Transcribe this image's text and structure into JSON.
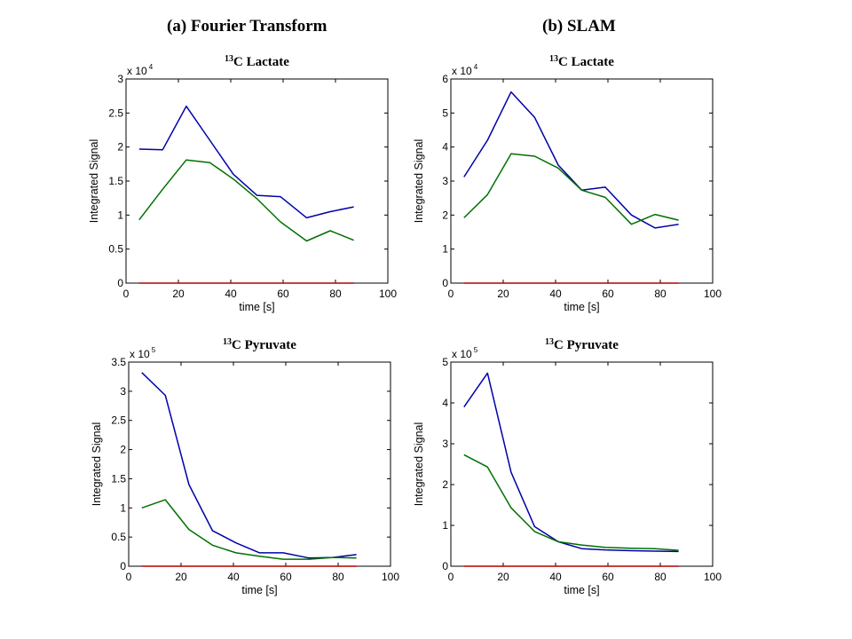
{
  "columns": {
    "left_heading": "(a) Fourier Transform",
    "right_heading": "(b) SLAM"
  },
  "chart_data": [
    {
      "type": "line",
      "title_sup": "13",
      "title": "C Lactate",
      "xlabel": "time [s]",
      "ylabel": "Integrated Signal",
      "multiplier_base": "x 10",
      "multiplier_exp": "4",
      "xlim": [
        0,
        100
      ],
      "ylim": [
        0,
        3
      ],
      "xticks": [
        0,
        20,
        40,
        60,
        80,
        100
      ],
      "yticks": [
        0,
        0.5,
        1,
        1.5,
        2,
        2.5,
        3
      ],
      "xtick_labels": [
        "0",
        "20",
        "40",
        "60",
        "80",
        "100"
      ],
      "ytick_labels": [
        "0",
        "0.5",
        "1",
        "1.5",
        "2",
        "2.5",
        "3"
      ],
      "x": [
        5,
        14,
        23,
        32,
        41,
        50,
        59,
        69,
        78,
        87
      ],
      "series": [
        {
          "name": "blue",
          "color": "#0000aa",
          "values": [
            1.97,
            1.96,
            2.6,
            2.1,
            1.6,
            1.29,
            1.27,
            0.96,
            1.05,
            1.12
          ]
        },
        {
          "name": "green",
          "color": "#007000",
          "values": [
            0.93,
            1.38,
            1.81,
            1.77,
            1.53,
            1.24,
            0.9,
            0.62,
            0.77,
            0.63
          ]
        },
        {
          "name": "red",
          "color": "#b00000",
          "values": [
            0,
            0,
            0,
            0,
            0,
            0,
            0,
            0,
            0,
            0
          ]
        }
      ]
    },
    {
      "type": "line",
      "title_sup": "13",
      "title": "C Lactate",
      "xlabel": "time [s]",
      "ylabel": "Integrated Signal",
      "multiplier_base": "x 10",
      "multiplier_exp": "4",
      "xlim": [
        0,
        100
      ],
      "ylim": [
        0,
        6
      ],
      "xticks": [
        0,
        20,
        40,
        60,
        80,
        100
      ],
      "yticks": [
        0,
        1,
        2,
        3,
        4,
        5,
        6
      ],
      "xtick_labels": [
        "0",
        "20",
        "40",
        "60",
        "80",
        "100"
      ],
      "ytick_labels": [
        "0",
        "1",
        "2",
        "3",
        "4",
        "5",
        "6"
      ],
      "x": [
        5,
        14,
        23,
        32,
        41,
        50,
        59,
        69,
        78,
        87
      ],
      "series": [
        {
          "name": "blue",
          "color": "#0000aa",
          "values": [
            3.12,
            4.2,
            5.62,
            4.87,
            3.47,
            2.73,
            2.82,
            2.0,
            1.62,
            1.73
          ]
        },
        {
          "name": "green",
          "color": "#007000",
          "values": [
            1.92,
            2.6,
            3.8,
            3.73,
            3.38,
            2.73,
            2.52,
            1.73,
            2.02,
            1.85
          ]
        },
        {
          "name": "red",
          "color": "#b00000",
          "values": [
            0,
            0,
            0,
            0,
            0,
            0,
            0,
            0,
            0,
            0
          ]
        }
      ]
    },
    {
      "type": "line",
      "title_sup": "13",
      "title": "C Pyruvate",
      "xlabel": "time [s]",
      "ylabel": "Integrated Signal",
      "multiplier_base": "x 10",
      "multiplier_exp": "5",
      "xlim": [
        0,
        100
      ],
      "ylim": [
        0,
        3.5
      ],
      "xticks": [
        0,
        20,
        40,
        60,
        80,
        100
      ],
      "yticks": [
        0,
        0.5,
        1,
        1.5,
        2,
        2.5,
        3,
        3.5
      ],
      "xtick_labels": [
        "0",
        "20",
        "40",
        "60",
        "80",
        "100"
      ],
      "ytick_labels": [
        "0",
        "0.5",
        "1",
        "1.5",
        "2",
        "2.5",
        "3",
        "3.5"
      ],
      "x": [
        5,
        14,
        23,
        32,
        41,
        50,
        59,
        69,
        78,
        87
      ],
      "series": [
        {
          "name": "blue",
          "color": "#0000aa",
          "values": [
            3.32,
            2.93,
            1.4,
            0.61,
            0.4,
            0.23,
            0.23,
            0.14,
            0.15,
            0.2
          ]
        },
        {
          "name": "green",
          "color": "#007000",
          "values": [
            1.0,
            1.14,
            0.63,
            0.36,
            0.23,
            0.17,
            0.12,
            0.12,
            0.15,
            0.14
          ]
        },
        {
          "name": "red",
          "color": "#b00000",
          "values": [
            0,
            0,
            0,
            0,
            0,
            0,
            0,
            0,
            0,
            0
          ]
        }
      ]
    },
    {
      "type": "line",
      "title_sup": "13",
      "title": "C Pyruvate",
      "xlabel": "time [s]",
      "ylabel": "Integrated Signal",
      "multiplier_base": "x 10",
      "multiplier_exp": "5",
      "xlim": [
        0,
        100
      ],
      "ylim": [
        0,
        5
      ],
      "xticks": [
        0,
        20,
        40,
        60,
        80,
        100
      ],
      "yticks": [
        0,
        1,
        2,
        3,
        4,
        5
      ],
      "xtick_labels": [
        "0",
        "20",
        "40",
        "60",
        "80",
        "100"
      ],
      "ytick_labels": [
        "0",
        "1",
        "2",
        "3",
        "4",
        "5"
      ],
      "x": [
        5,
        14,
        23,
        32,
        41,
        50,
        59,
        69,
        78,
        87
      ],
      "series": [
        {
          "name": "blue",
          "color": "#0000aa",
          "values": [
            3.9,
            4.73,
            2.3,
            0.97,
            0.6,
            0.43,
            0.4,
            0.38,
            0.37,
            0.36
          ]
        },
        {
          "name": "green",
          "color": "#007000",
          "values": [
            2.73,
            2.43,
            1.43,
            0.85,
            0.6,
            0.52,
            0.46,
            0.44,
            0.43,
            0.39
          ]
        },
        {
          "name": "red",
          "color": "#b00000",
          "values": [
            0,
            0,
            0,
            0,
            0,
            0,
            0,
            0,
            0,
            0
          ]
        }
      ]
    }
  ]
}
